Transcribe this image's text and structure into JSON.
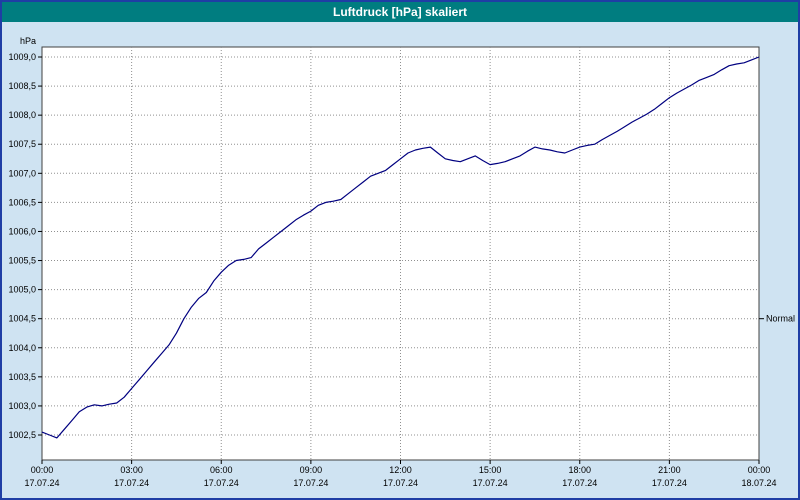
{
  "window": {
    "title": "Luftdruck [hPa] skaliert",
    "title_bar_color": "#007d80",
    "background_color": "#cfe3f2",
    "frame_color": "#1f3ea5"
  },
  "chart_data": {
    "type": "line",
    "title": "Luftdruck [hPa] skaliert",
    "xlabel": "",
    "ylabel": "hPa",
    "line_color": "#000080",
    "plot_background": "#ffffff",
    "grid": true,
    "grid_color": "#909090",
    "ylim": [
      1002.1,
      1009.2
    ],
    "x_start_hour": 0,
    "x_step_hours": 0.25,
    "x_total_hours": 24,
    "values": [
      1002.55,
      1002.5,
      1002.45,
      1002.6,
      1002.75,
      1002.9,
      1002.98,
      1003.02,
      1003.0,
      1003.03,
      1003.05,
      1003.15,
      1003.3,
      1003.45,
      1003.6,
      1003.75,
      1003.9,
      1004.05,
      1004.25,
      1004.5,
      1004.7,
      1004.85,
      1004.95,
      1005.15,
      1005.3,
      1005.42,
      1005.5,
      1005.52,
      1005.55,
      1005.7,
      1005.8,
      1005.9,
      1006.0,
      1006.1,
      1006.2,
      1006.28,
      1006.35,
      1006.45,
      1006.5,
      1006.52,
      1006.55,
      1006.65,
      1006.75,
      1006.85,
      1006.95,
      1007.0,
      1007.05,
      1007.15,
      1007.25,
      1007.35,
      1007.4,
      1007.43,
      1007.45,
      1007.35,
      1007.25,
      1007.22,
      1007.2,
      1007.25,
      1007.3,
      1007.22,
      1007.15,
      1007.17,
      1007.2,
      1007.25,
      1007.3,
      1007.38,
      1007.45,
      1007.42,
      1007.4,
      1007.37,
      1007.35,
      1007.4,
      1007.45,
      1007.48,
      1007.5,
      1007.58,
      1007.65,
      1007.72,
      1007.8,
      1007.88,
      1007.95,
      1008.02,
      1008.1,
      1008.2,
      1008.3,
      1008.38,
      1008.45,
      1008.52,
      1008.6,
      1008.65,
      1008.7,
      1008.78,
      1008.85,
      1008.88,
      1008.9,
      1008.95,
      1009.0
    ],
    "y_axis": {
      "min": 1002.5,
      "max": 1009.0,
      "step": 0.5,
      "ticks": [
        {
          "label": "1009,0",
          "value": 1009.0
        },
        {
          "label": "1008,5",
          "value": 1008.5
        },
        {
          "label": "1008,0",
          "value": 1008.0
        },
        {
          "label": "1007,5",
          "value": 1007.5
        },
        {
          "label": "1007,0",
          "value": 1007.0
        },
        {
          "label": "1006,5",
          "value": 1006.5
        },
        {
          "label": "1006,0",
          "value": 1006.0
        },
        {
          "label": "1005,5",
          "value": 1005.5
        },
        {
          "label": "1005,0",
          "value": 1005.0
        },
        {
          "label": "1004,5",
          "value": 1004.5
        },
        {
          "label": "1004,0",
          "value": 1004.0
        },
        {
          "label": "1003,5",
          "value": 1003.5
        },
        {
          "label": "1003,0",
          "value": 1003.0
        },
        {
          "label": "1002,5",
          "value": 1002.5
        }
      ]
    },
    "x_axis": {
      "ticks": [
        {
          "time": "00:00",
          "date": "17.07.24",
          "hour": 0
        },
        {
          "time": "03:00",
          "date": "17.07.24",
          "hour": 3
        },
        {
          "time": "06:00",
          "date": "17.07.24",
          "hour": 6
        },
        {
          "time": "09:00",
          "date": "17.07.24",
          "hour": 9
        },
        {
          "time": "12:00",
          "date": "17.07.24",
          "hour": 12
        },
        {
          "time": "15:00",
          "date": "17.07.24",
          "hour": 15
        },
        {
          "time": "18:00",
          "date": "17.07.24",
          "hour": 18
        },
        {
          "time": "21:00",
          "date": "17.07.24",
          "hour": 21
        },
        {
          "time": "00:00",
          "date": "18.07.24",
          "hour": 24
        }
      ]
    },
    "normal_marker": {
      "label": "Normal",
      "value": 1004.5
    }
  }
}
